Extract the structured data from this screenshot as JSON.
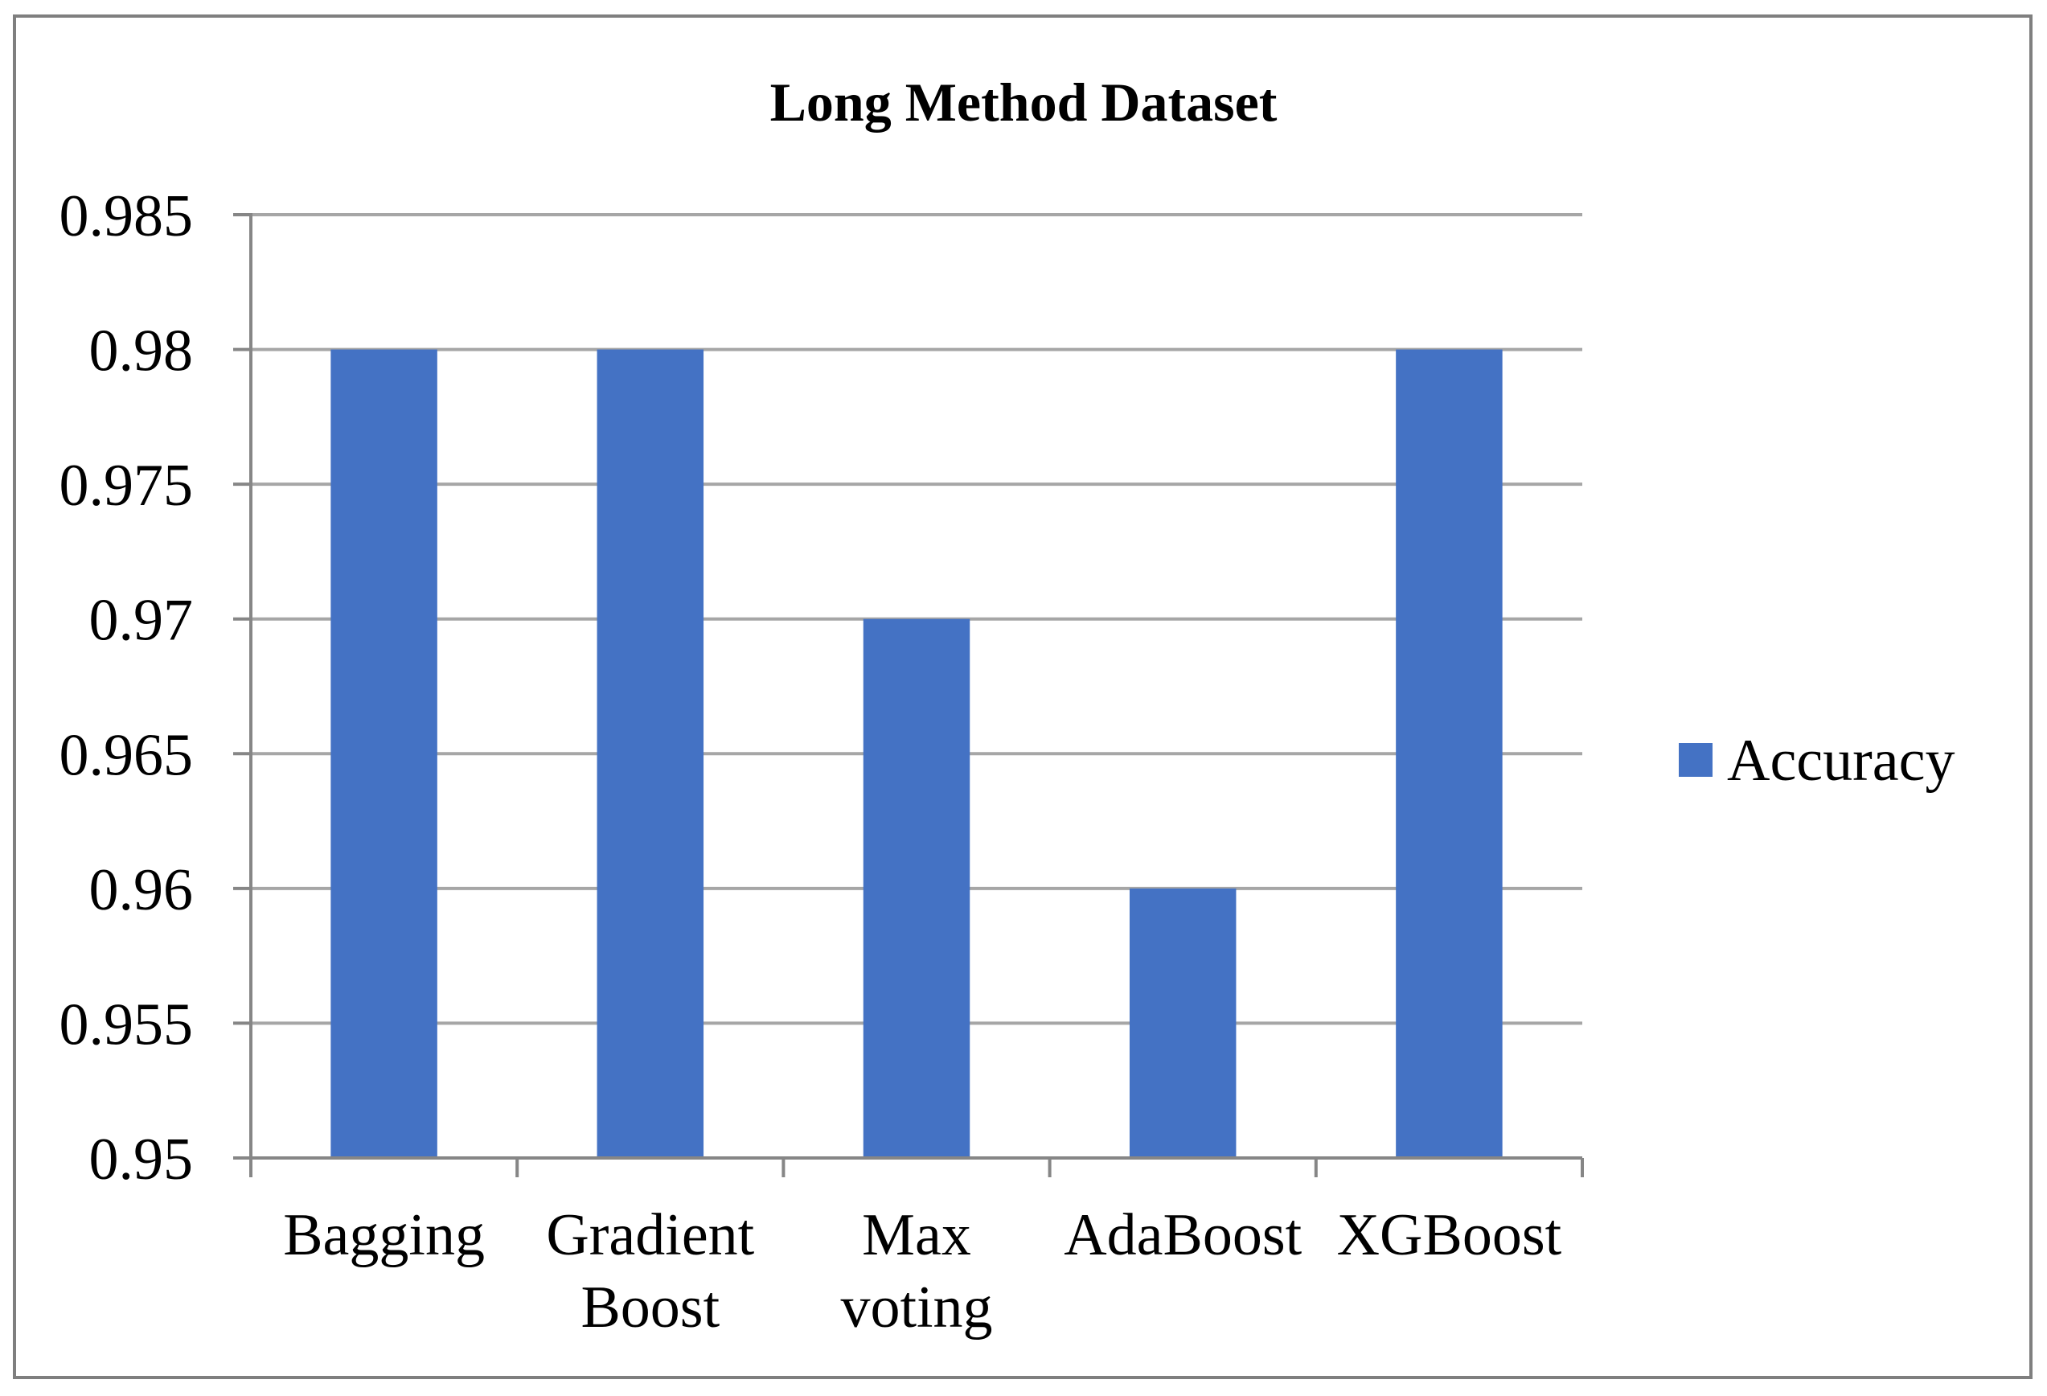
{
  "chart_data": {
    "type": "bar",
    "title": "Long Method Dataset",
    "xlabel": "",
    "ylabel": "",
    "categories": [
      [
        "Bagging"
      ],
      [
        "Gradient",
        "Boost"
      ],
      [
        "Max",
        "voting"
      ],
      [
        "AdaBoost"
      ],
      [
        "XGBoost"
      ]
    ],
    "series": [
      {
        "name": "Accuracy",
        "values": [
          0.98,
          0.98,
          0.97,
          0.96,
          0.98
        ],
        "color": "#4472C4"
      }
    ],
    "ylim": [
      0.95,
      0.985
    ],
    "yticks": [
      0.95,
      0.955,
      0.96,
      0.965,
      0.97,
      0.975,
      0.98,
      0.985
    ],
    "ytick_labels": [
      "0.95",
      "0.955",
      "0.96",
      "0.965",
      "0.97",
      "0.975",
      "0.98",
      "0.985"
    ],
    "grid": true,
    "legend_position": "right",
    "colors": {
      "gridline": "#A6A6A6",
      "axis": "#868686",
      "frame": "#7F7F7F"
    }
  }
}
